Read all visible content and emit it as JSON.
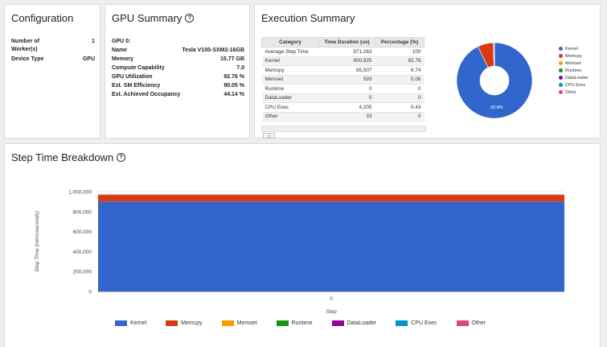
{
  "configuration": {
    "title": "Configuration",
    "rows": [
      {
        "label": "Number of",
        "label2": "Worker(s)",
        "value": "1"
      },
      {
        "label": "Device Type",
        "value": "GPU"
      }
    ]
  },
  "gpu_summary": {
    "title": "GPU Summary",
    "gpu_heading": "GPU 0:",
    "rows": [
      {
        "label": "Name",
        "value": "Tesla V100-SXM2-16GB"
      },
      {
        "label": "Memory",
        "value": "15.77 GB"
      },
      {
        "label": "Compute Capability",
        "value": "7.0"
      },
      {
        "label": "GPU Utilization",
        "value": "92.76 %"
      },
      {
        "label": "Est. SM Efficiency",
        "value": "90.05 %"
      },
      {
        "label": "Est. Achieved Occupancy",
        "value": "44.14 %"
      }
    ]
  },
  "execution_summary": {
    "title": "Execution Summary",
    "columns": [
      "Category",
      "Time Duration (us)",
      "Percentage (%)"
    ],
    "rows": [
      [
        "Average Step Time",
        "971,263",
        "100"
      ],
      [
        "Kernel",
        "900,925",
        "92.76"
      ],
      [
        "Memcpy",
        "65,507",
        "6.74"
      ],
      [
        "Memset",
        "593",
        "0.06"
      ],
      [
        "Runtime",
        "0",
        "0"
      ],
      [
        "DataLoader",
        "0",
        "0"
      ],
      [
        "CPU Exec",
        "4,205",
        "0.43"
      ],
      [
        "Other",
        "33",
        "0"
      ]
    ],
    "pie": {
      "slice_label": "92.8%",
      "slices": [
        {
          "name": "Kernel",
          "value": 92.76,
          "color": "#3366cc"
        },
        {
          "name": "Memcpy",
          "value": 6.74,
          "color": "#dc3912"
        },
        {
          "name": "Memset",
          "value": 0.06,
          "color": "#ff9900"
        },
        {
          "name": "Runtime",
          "value": 0,
          "color": "#109618"
        },
        {
          "name": "DataLoader",
          "value": 0,
          "color": "#990099"
        },
        {
          "name": "CPU Exec",
          "value": 0.43,
          "color": "#0099c6"
        },
        {
          "name": "Other",
          "value": 0.003,
          "color": "#dd4477"
        }
      ]
    }
  },
  "step_time": {
    "title": "Step Time Breakdown"
  },
  "chart_data": {
    "type": "bar",
    "stacked": true,
    "categories": [
      "0"
    ],
    "xlabel": "Step",
    "ylabel": "Step Time (microseconds)",
    "ylim": [
      0,
      1000000
    ],
    "yticks": [
      "0",
      "200,000",
      "400,000",
      "600,000",
      "800,000",
      "1,000,000"
    ],
    "legend_position": "bottom",
    "series": [
      {
        "name": "Kernel",
        "values": [
          900925
        ],
        "color": "#3366cc"
      },
      {
        "name": "Memcpy",
        "values": [
          65507
        ],
        "color": "#dc3912"
      },
      {
        "name": "Memset",
        "values": [
          593
        ],
        "color": "#ff9900"
      },
      {
        "name": "Runtime",
        "values": [
          0
        ],
        "color": "#109618"
      },
      {
        "name": "DataLoader",
        "values": [
          0
        ],
        "color": "#990099"
      },
      {
        "name": "CPU Exec",
        "values": [
          4205
        ],
        "color": "#0099c6"
      },
      {
        "name": "Other",
        "values": [
          33
        ],
        "color": "#dd4477"
      }
    ]
  }
}
